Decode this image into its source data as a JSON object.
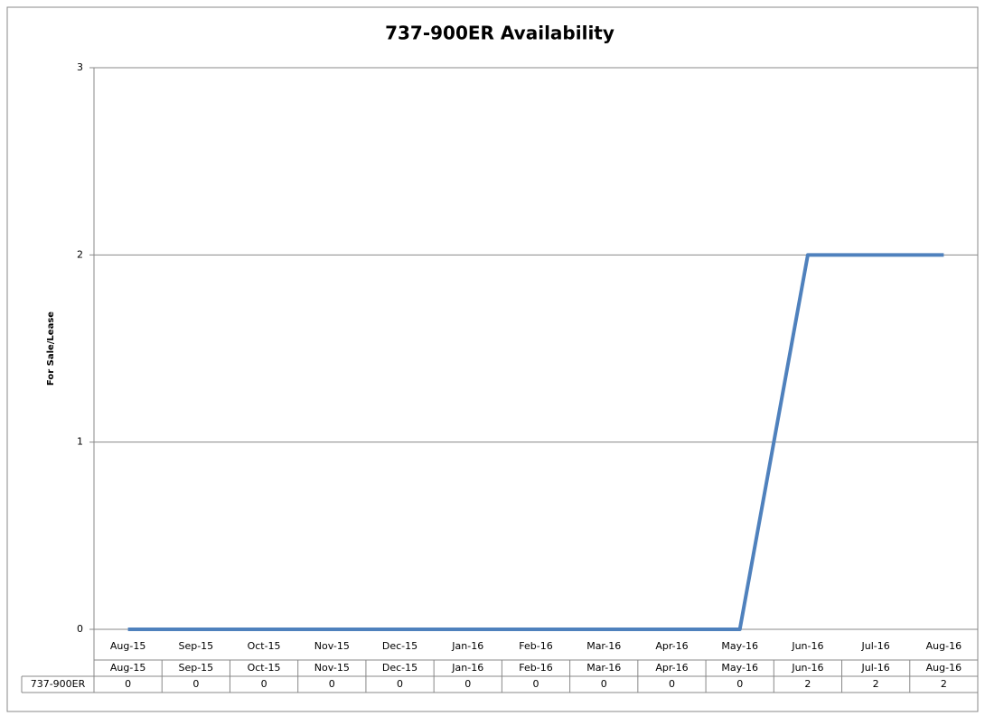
{
  "chart_data": {
    "type": "line",
    "title": "737-900ER Availability",
    "y_label": "For Sale/Lease",
    "categories": [
      "Aug-15",
      "Sep-15",
      "Oct-15",
      "Nov-15",
      "Dec-15",
      "Jan-16",
      "Feb-16",
      "Mar-16",
      "Apr-16",
      "May-16",
      "Jun-16",
      "Jul-16",
      "Aug-16"
    ],
    "series": [
      {
        "name": "737-900ER",
        "color": "#4f81bd",
        "values": [
          0,
          0,
          0,
          0,
          0,
          0,
          0,
          0,
          0,
          0,
          2,
          2,
          2
        ]
      }
    ],
    "ylim": [
      0,
      3
    ],
    "yticks": [
      0,
      1,
      2,
      3
    ],
    "grid": true,
    "data_table": true
  }
}
